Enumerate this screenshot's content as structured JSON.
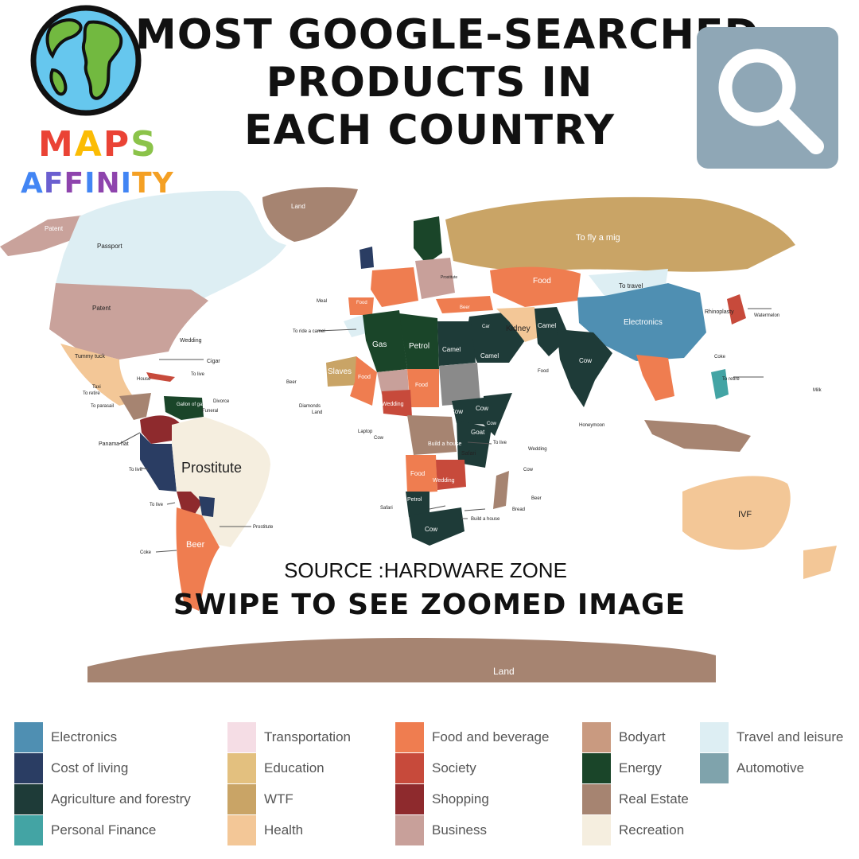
{
  "title": {
    "line1": "MOST GOOGLE-SEARCHED",
    "line2": "PRODUCTS IN",
    "line3": "EACH COUNTRY"
  },
  "logo": {
    "maps_letters": [
      "M",
      "A",
      "P",
      "S"
    ],
    "maps_colors": [
      "#ea4335",
      "#fbbc05",
      "#ea4335",
      "#8bc34a"
    ],
    "affinity_letters": [
      "A",
      "F",
      "F",
      "I",
      "N",
      "I",
      "T",
      "Y"
    ],
    "affinity_colors": [
      "#4285f4",
      "#6b5fd0",
      "#8e44ad",
      "#4285f4",
      "#8e44ad",
      "#4285f4",
      "#f4a024",
      "#f4a024"
    ]
  },
  "source": "SOURCE :HARDWARE ZONE",
  "swipe": "SWIPE TO SEE ZOOMED IMAGE",
  "map_labels": {
    "patent_alaska": "Patent",
    "passport": "Passport",
    "patent_usa": "Patent",
    "land_greenland": "Land",
    "to_fly_a_mig": "To fly a mig",
    "food_kaz": "Food",
    "to_travel": "To travel",
    "electronics": "Electronics",
    "rhinoplasty": "Rhinoplasty",
    "watermelon": "Watermelon",
    "kidney": "Kidney",
    "camel_pak": "Camel",
    "cow_india": "Cow",
    "gas": "Gas",
    "petrol_libya": "Petrol",
    "camel_egypt": "Camel",
    "camel_saudi": "Camel",
    "slaves": "Slaves",
    "food_niger": "Food",
    "food_chad": "Food",
    "wedding_nigeria": "Wedding",
    "cow_ethiopia": "Cow",
    "cow_somalia": "Cow",
    "goat": "Goat",
    "build_a_house": "Build a house",
    "safari_tz": "Safari",
    "food_angola": "Food",
    "wedding_zambia": "Wedding",
    "petrol_namibia": "Petrol",
    "cow_sa": "Cow",
    "prostitute": "Prostitute",
    "beer_argentina": "Beer",
    "ivf": "IVF",
    "land_antarctica": "Land",
    "wedding_carib": "Wedding",
    "cigar": "Cigar",
    "tummy_tuck": "Tummy tuck",
    "to_ride_a_camel": "To ride a camel",
    "panama_hat": "Panama hat",
    "to_live_ec": "To live",
    "to_live_bo": "To live",
    "prostitute_ur": "Prostitute",
    "coke": "Coke",
    "honeymoon": "Honeymoon",
    "wedding_ocean": "Wedding",
    "cow_ocean": "Cow",
    "beer_ocean": "Beer",
    "bread": "Bread",
    "build_a_house_ptr": "Build a house",
    "safari_ptr": "Safari",
    "milk": "Milk",
    "to_retire_ph": "To retire",
    "meal": "Meal",
    "beer_wa": "Beer",
    "diamonds": "Diamonds",
    "laptop": "Laptop",
    "gallon_of_gas": "Gallon of gas",
    "funeral": "Funeral",
    "house": "House",
    "taxi": "Taxi",
    "to_retire": "To retire",
    "to_parasail": "To parasail",
    "divorce": "Divorce",
    "to_live_carib": "To live",
    "beer_eu": "Beer",
    "food_eu": "Food",
    "car": "Car",
    "prostitute_ru": "Prostitute",
    "cow_carib": "Cow",
    "land_wa": "Land",
    "food_ptr": "Food",
    "coke_asia": "Coke",
    "to_live_af": "To live",
    "cow_af": "Cow"
  },
  "legend": [
    {
      "label": "Electronics",
      "color": "#4f8fb2"
    },
    {
      "label": "Cost of living",
      "color": "#2a3d63"
    },
    {
      "label": "Agriculture and forestry",
      "color": "#1e3b38"
    },
    {
      "label": "Personal Finance",
      "color": "#43a4a4"
    },
    {
      "label": "Transportation",
      "color": "#f5dde5"
    },
    {
      "label": "Education",
      "color": "#e3c07f"
    },
    {
      "label": "WTF",
      "color": "#c9a466"
    },
    {
      "label": "Health",
      "color": "#f3c797"
    },
    {
      "label": "Food and beverage",
      "color": "#ef7d50"
    },
    {
      "label": "Society",
      "color": "#c74a3b"
    },
    {
      "label": "Shopping",
      "color": "#8e2a2d"
    },
    {
      "label": "Business",
      "color": "#c8a09a"
    },
    {
      "label": "Bodyart",
      "color": "#c99a80"
    },
    {
      "label": "Energy",
      "color": "#1a4529"
    },
    {
      "label": "Real Estate",
      "color": "#a68471"
    },
    {
      "label": "Recreation",
      "color": "#f5eedf"
    },
    {
      "label": "Travel and leisure",
      "color": "#ddeef3"
    },
    {
      "label": "Automotive",
      "color": "#7fa3ac"
    }
  ]
}
